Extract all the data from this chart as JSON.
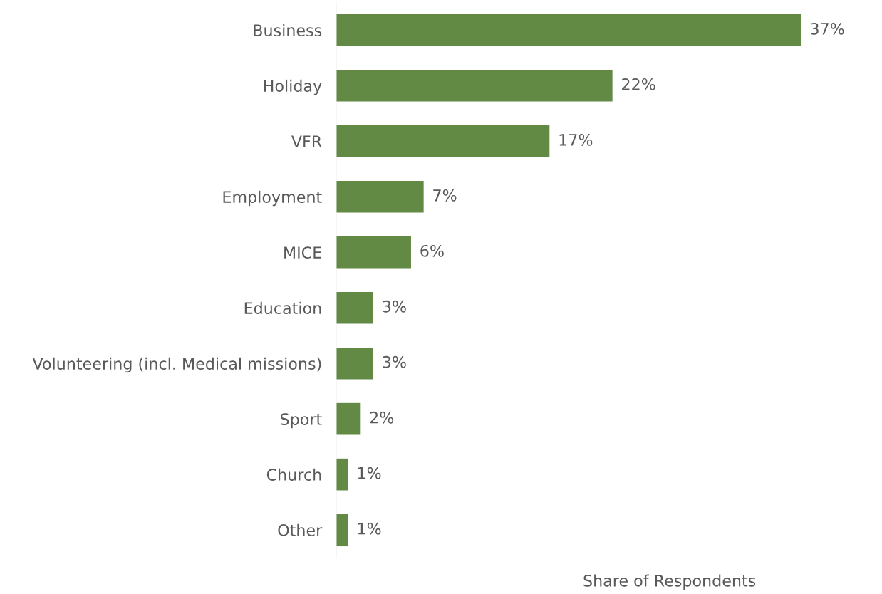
{
  "chart_data": {
    "type": "bar",
    "orientation": "horizontal",
    "xlabel": "Share of Respondents",
    "categories": [
      "Business",
      "Holiday",
      "VFR",
      "Employment",
      "MICE",
      "Education",
      "Volunteering (incl. Medical missions)",
      "Sport",
      "Church",
      "Other"
    ],
    "values": [
      37,
      22,
      17,
      7,
      6,
      3,
      3,
      2,
      1,
      1
    ],
    "value_labels": [
      "37%",
      "22%",
      "17%",
      "7%",
      "6%",
      "3%",
      "3%",
      "2%",
      "1%",
      "1%"
    ],
    "color": "#638a45",
    "tick_labels": "y",
    "grid": false,
    "legend": false
  }
}
